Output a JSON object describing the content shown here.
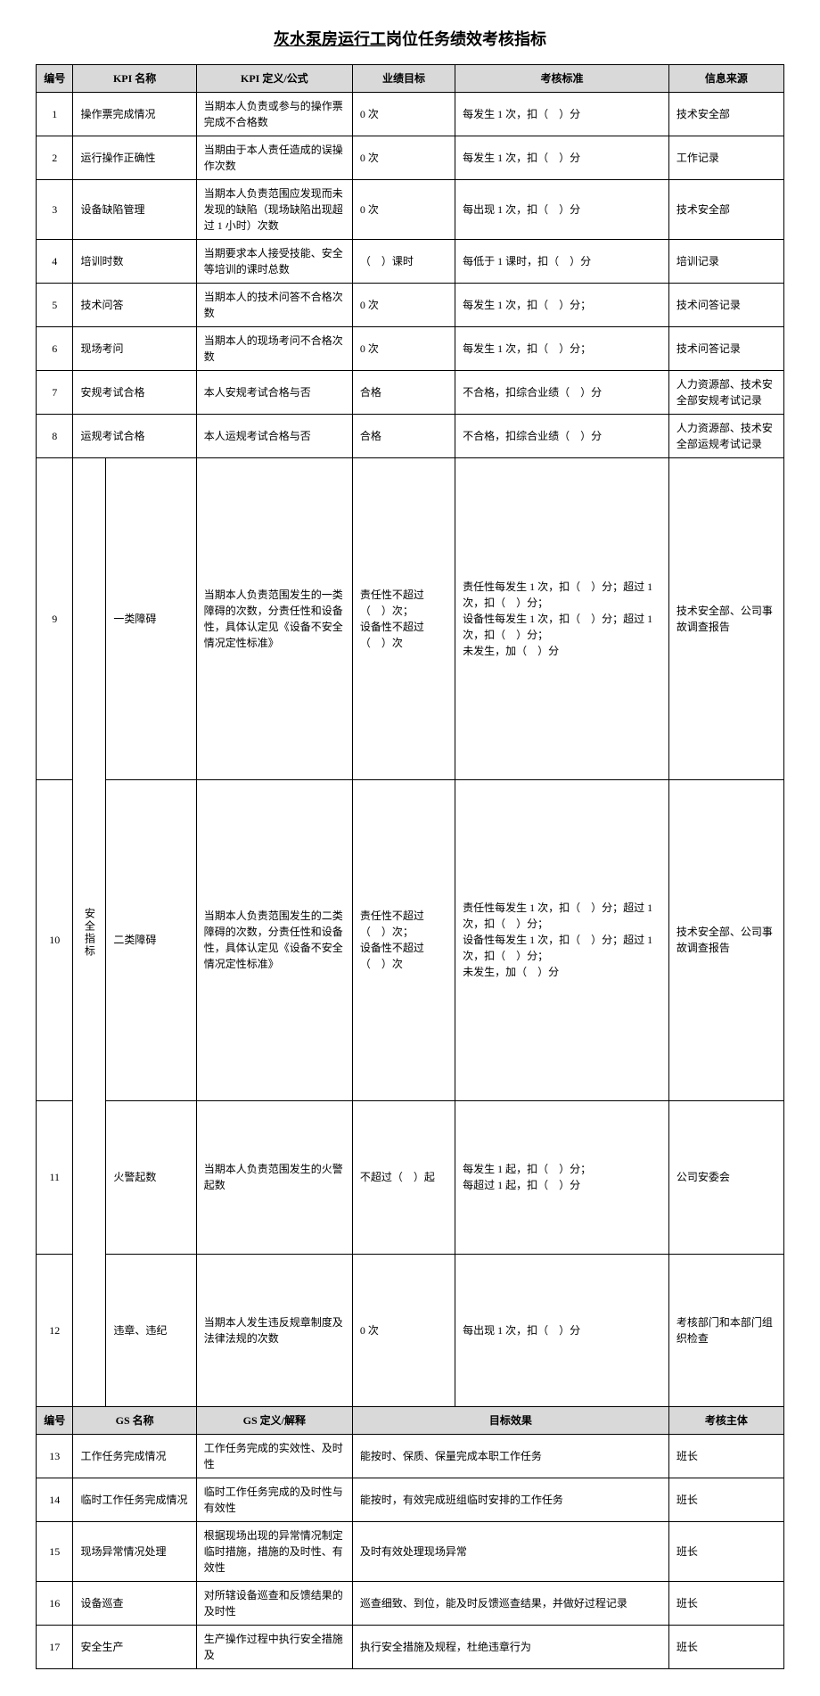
{
  "title_underline": "灰水泵房运行工",
  "title_rest": "岗位任务绩效考核指标",
  "headers1": {
    "num": "编号",
    "name": "KPI 名称",
    "def": "KPI 定义/公式",
    "target": "业绩目标",
    "std": "考核标准",
    "src": "信息来源"
  },
  "headers2": {
    "num": "编号",
    "name": "GS 名称",
    "def": "GS 定义/解释",
    "effect": "目标效果",
    "subject": "考核主体"
  },
  "safety_label": "安全指标",
  "kpi": [
    {
      "num": "1",
      "name": "操作票完成情况",
      "def": "当期本人负责或参与的操作票完成不合格数",
      "target": "0 次",
      "std": "每发生 1 次，扣（　）分",
      "src": "技术安全部"
    },
    {
      "num": "2",
      "name": "运行操作正确性",
      "def": "当期由于本人责任造成的误操作次数",
      "target": "0 次",
      "std": "每发生 1 次，扣（　）分",
      "src": "工作记录"
    },
    {
      "num": "3",
      "name": "设备缺陷管理",
      "def": "当期本人负责范围应发现而未发现的缺陷（现场缺陷出现超过 1 小时）次数",
      "target": "0 次",
      "std": "每出现 1 次，扣（　）分",
      "src": "技术安全部"
    },
    {
      "num": "4",
      "name": "培训时数",
      "def": "当期要求本人接受技能、安全等培训的课时总数",
      "target": "（　）课时",
      "std": "每低于 1 课时，扣（　）分",
      "src": "培训记录"
    },
    {
      "num": "5",
      "name": "技术问答",
      "def": "当期本人的技术问答不合格次数",
      "target": "0 次",
      "std": "每发生 1 次，扣（　）分；",
      "src": "技术问答记录"
    },
    {
      "num": "6",
      "name": "现场考问",
      "def": "当期本人的现场考问不合格次数",
      "target": "0 次",
      "std": "每发生 1 次，扣（　）分；",
      "src": "技术问答记录"
    },
    {
      "num": "7",
      "name": "安规考试合格",
      "def": "本人安规考试合格与否",
      "target": "合格",
      "std": "不合格，扣综合业绩（　）分",
      "src": "人力资源部、技术安全部安规考试记录"
    },
    {
      "num": "8",
      "name": "运规考试合格",
      "def": "本人运规考试合格与否",
      "target": "合格",
      "std": "不合格，扣综合业绩（　）分",
      "src": "人力资源部、技术安全部运规考试记录"
    }
  ],
  "safety": [
    {
      "num": "9",
      "name": "一类障碍",
      "def": "当期本人负责范围发生的一类障碍的次数，分责任性和设备性，具体认定见《设备不安全情况定性标准》",
      "target": "责任性不超过（　）次；\n设备性不超过（　）次",
      "std": "责任性每发生 1 次，扣（　）分；超过 1 次，扣（　）分；\n设备性每发生 1 次，扣（　）分；超过 1 次，扣（　）分；\n未发生，加（　）分",
      "src": "技术安全部、公司事故调查报告"
    },
    {
      "num": "10",
      "name": "二类障碍",
      "def": "当期本人负责范围发生的二类障碍的次数，分责任性和设备性，具体认定见《设备不安全情况定性标准》",
      "target": "责任性不超过（　）次；\n设备性不超过（　）次",
      "std": "责任性每发生 1 次，扣（　）分；超过 1 次，扣（　）分；\n设备性每发生 1 次，扣（　）分；超过 1 次，扣（　）分；\n未发生，加（　）分",
      "src": "技术安全部、公司事故调查报告"
    },
    {
      "num": "11",
      "name": "火警起数",
      "def": "当期本人负责范围发生的火警起数",
      "target": "不超过（　）起",
      "std": "每发生 1 起，扣（　）分；\n每超过 1 起，扣（　）分",
      "src": "公司安委会"
    },
    {
      "num": "12",
      "name": "违章、违纪",
      "def": "当期本人发生违反规章制度及法律法规的次数",
      "target": "0 次",
      "std": "每出现 1 次，扣（　）分",
      "src": "考核部门和本部门组织检查"
    }
  ],
  "gs": [
    {
      "num": "13",
      "name": "工作任务完成情况",
      "def": "工作任务完成的实效性、及时性",
      "effect": "能按时、保质、保量完成本职工作任务",
      "subject": "班长"
    },
    {
      "num": "14",
      "name": "临时工作任务完成情况",
      "def": "临时工作任务完成的及时性与有效性",
      "effect": "能按时，有效完成班组临时安排的工作任务",
      "subject": "班长"
    },
    {
      "num": "15",
      "name": "现场异常情况处理",
      "def": "根据现场出现的异常情况制定临时措施，措施的及时性、有效性",
      "effect": "及时有效处理现场异常",
      "subject": "班长"
    },
    {
      "num": "16",
      "name": "设备巡查",
      "def": "对所辖设备巡查和反馈结果的及时性",
      "effect": "巡查细致、到位，能及时反馈巡查结果，并做好过程记录",
      "subject": "班长"
    },
    {
      "num": "17",
      "name": "安全生产",
      "def": "生产操作过程中执行安全措施及",
      "effect": "执行安全措施及规程，杜绝违章行为",
      "subject": "班长"
    }
  ]
}
